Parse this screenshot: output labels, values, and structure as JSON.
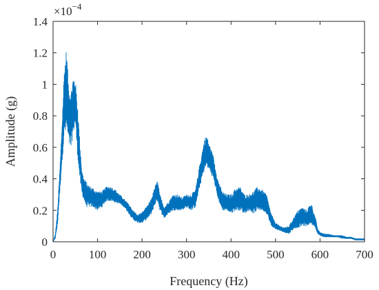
{
  "chart_data": {
    "type": "line",
    "title": "",
    "xlabel": "Frequency (Hz)",
    "ylabel": "Amplitude (g)",
    "xlim": [
      0,
      700
    ],
    "ylim": [
      0,
      1.4
    ],
    "x_ticks": [
      "0",
      "100",
      "200",
      "300",
      "400",
      "500",
      "600",
      "700"
    ],
    "y_ticks": [
      "0",
      "0.2",
      "0.4",
      "0.6",
      "0.8",
      "1",
      "1.2",
      "1.4"
    ],
    "y_multiplier_base": "×10",
    "y_multiplier_exp": "−4",
    "grid": false,
    "series": [
      {
        "color": "#0072BD",
        "x": [
          0,
          5,
          10,
          15,
          20,
          25,
          30,
          35,
          40,
          45,
          50,
          55,
          60,
          65,
          70,
          75,
          80,
          90,
          100,
          110,
          120,
          130,
          140,
          150,
          160,
          170,
          180,
          190,
          200,
          210,
          220,
          230,
          235,
          240,
          250,
          260,
          270,
          280,
          290,
          300,
          310,
          320,
          330,
          340,
          345,
          350,
          360,
          370,
          380,
          390,
          400,
          410,
          420,
          430,
          440,
          450,
          460,
          470,
          480,
          490,
          500,
          510,
          520,
          530,
          540,
          550,
          560,
          570,
          580,
          590,
          595,
          600,
          610,
          620,
          630,
          640,
          650,
          660,
          670,
          680,
          690,
          700
        ],
        "lower": [
          0,
          0.02,
          0.1,
          0.3,
          0.5,
          0.65,
          0.7,
          0.62,
          0.58,
          0.68,
          0.75,
          0.55,
          0.4,
          0.3,
          0.26,
          0.22,
          0.22,
          0.22,
          0.2,
          0.22,
          0.26,
          0.26,
          0.25,
          0.24,
          0.22,
          0.18,
          0.14,
          0.12,
          0.12,
          0.14,
          0.17,
          0.24,
          0.26,
          0.2,
          0.15,
          0.18,
          0.2,
          0.2,
          0.2,
          0.22,
          0.2,
          0.22,
          0.35,
          0.45,
          0.48,
          0.46,
          0.4,
          0.28,
          0.2,
          0.2,
          0.18,
          0.2,
          0.2,
          0.18,
          0.2,
          0.18,
          0.2,
          0.2,
          0.18,
          0.1,
          0.08,
          0.07,
          0.06,
          0.05,
          0.08,
          0.09,
          0.1,
          0.1,
          0.12,
          0.08,
          0.05,
          0.04,
          0.03,
          0.03,
          0.03,
          0.03,
          0.02,
          0.02,
          0.02,
          0.01,
          0.01,
          0.01
        ],
        "upper": [
          0,
          0.05,
          0.2,
          0.45,
          0.75,
          1.1,
          1.23,
          1.0,
          0.95,
          1.05,
          1.03,
          0.88,
          0.65,
          0.45,
          0.4,
          0.38,
          0.36,
          0.34,
          0.32,
          0.32,
          0.35,
          0.35,
          0.33,
          0.3,
          0.27,
          0.24,
          0.2,
          0.17,
          0.19,
          0.22,
          0.27,
          0.36,
          0.39,
          0.3,
          0.22,
          0.26,
          0.3,
          0.3,
          0.28,
          0.3,
          0.3,
          0.33,
          0.5,
          0.65,
          0.68,
          0.63,
          0.55,
          0.4,
          0.32,
          0.3,
          0.3,
          0.34,
          0.35,
          0.3,
          0.3,
          0.32,
          0.35,
          0.33,
          0.3,
          0.18,
          0.12,
          0.1,
          0.09,
          0.1,
          0.15,
          0.2,
          0.22,
          0.2,
          0.25,
          0.15,
          0.08,
          0.06,
          0.05,
          0.05,
          0.04,
          0.04,
          0.04,
          0.03,
          0.03,
          0.02,
          0.02,
          0.02
        ]
      }
    ]
  }
}
